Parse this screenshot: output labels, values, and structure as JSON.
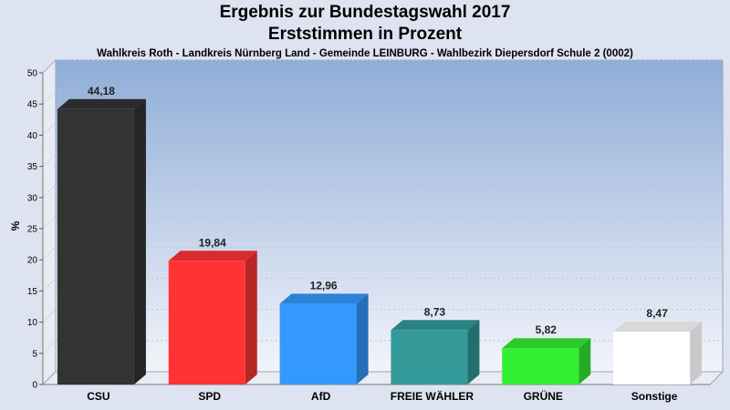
{
  "chart_data": {
    "type": "bar",
    "title": "Ergebnis zur Bundestagswahl 2017",
    "subtitle": "Erststimmen in Prozent",
    "caption": "Wahlkreis Roth - Landkreis Nürnberg Land - Gemeinde LEINBURG - Wahlbezirk Diepersdorf Schule 2 (0002)",
    "ylabel": "%",
    "xlabel": "",
    "ylim": [
      0,
      50
    ],
    "yticks": [
      0,
      5,
      10,
      15,
      20,
      25,
      30,
      35,
      40,
      45,
      50
    ],
    "grid": true,
    "categories": [
      "CSU",
      "SPD",
      "AfD",
      "FREIE WÄHLER",
      "GRÜNE",
      "Sonstige"
    ],
    "values": [
      44.18,
      19.84,
      12.96,
      8.73,
      5.82,
      8.47
    ],
    "value_labels": [
      "44,18",
      "19,84",
      "12,96",
      "8,73",
      "5,82",
      "8,47"
    ],
    "colors": [
      "#333333",
      "#ff3333",
      "#3399ff",
      "#339999",
      "#33ee33",
      "#ffffff"
    ]
  }
}
